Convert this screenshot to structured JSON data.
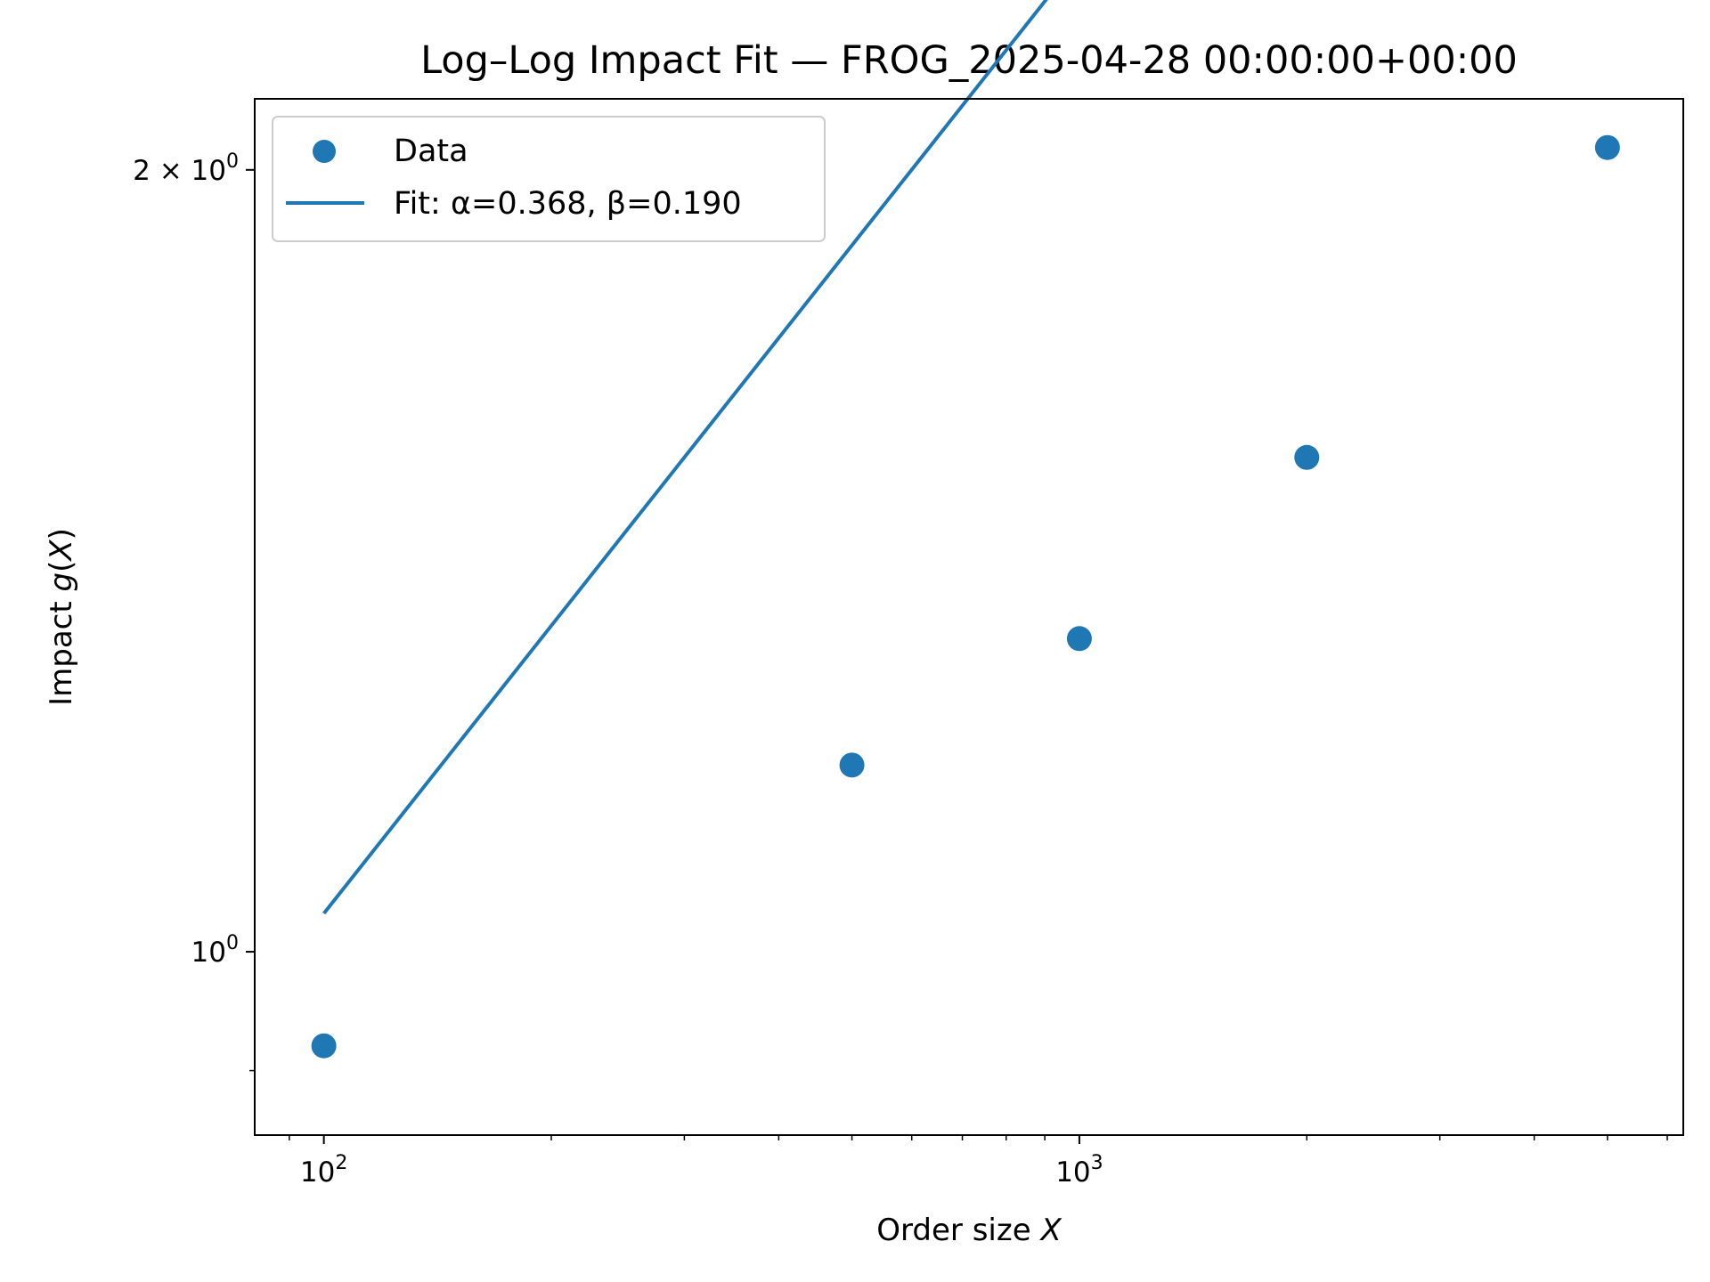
{
  "chart_data": {
    "type": "scatter",
    "title": "Log–Log Impact Fit — FROG_2025-04-28 00:00:00+00:00",
    "xlabel": "Order size",
    "xlabel_var": "X",
    "ylabel": "Impact",
    "ylabel_func": "g",
    "ylabel_arg": "X",
    "xscale": "log",
    "yscale": "log",
    "xlim": [
      81,
      6300
    ],
    "ylim": [
      0.85,
      2.13
    ],
    "x_major_ticks": [
      {
        "value": 100,
        "base": "10",
        "exp": "2"
      },
      {
        "value": 1000,
        "base": "10",
        "exp": "3"
      }
    ],
    "y_major_ticks": [
      {
        "value": 1,
        "base": "10",
        "exp": "0",
        "coef": ""
      },
      {
        "value": 2,
        "base": "10",
        "exp": "0",
        "coef": "2 × "
      }
    ],
    "x_minor_ticks": [
      90,
      200,
      300,
      400,
      500,
      600,
      700,
      800,
      900,
      2000,
      3000,
      4000,
      5000,
      6000
    ],
    "y_minor_ticks": [
      0.9
    ],
    "grid": false,
    "legend_position": "upper-left",
    "color": "#1f77b4",
    "series": [
      {
        "name": "Data",
        "kind": "scatter",
        "x": [
          100,
          500,
          1000,
          2000,
          5000
        ],
        "y": [
          0.92,
          1.18,
          1.32,
          1.55,
          2.04
        ]
      },
      {
        "name": "Fit: α=0.368, β=0.190",
        "kind": "line",
        "x": [
          100,
          5000
        ],
        "alpha": 0.368,
        "beta": 0.19
      }
    ]
  }
}
